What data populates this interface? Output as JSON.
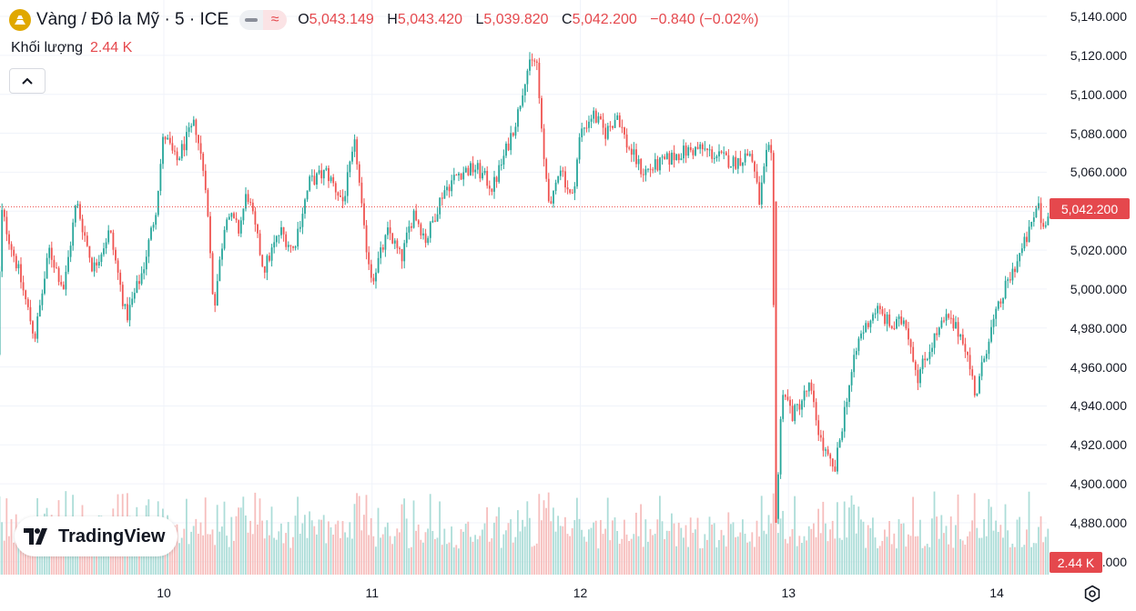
{
  "header": {
    "title": "Vàng / Đô la Mỹ · 5 · ICE",
    "ohlc": [
      {
        "label": "O",
        "value": "5,043.149"
      },
      {
        "label": "H",
        "value": "5,043.420"
      },
      {
        "label": "L",
        "value": "5,039.820"
      },
      {
        "label": "C",
        "value": "5,042.200"
      }
    ],
    "change": "−0.840 (−0.02%)",
    "volume_label": "Khối lượng",
    "volume_value": "2.44 K"
  },
  "logo_text": "TradingView",
  "last_price_label": "5,042.200",
  "last_volume_label": "2.44 K",
  "icons": [
    "gold-coin-icon",
    "minus-icon",
    "approx-icon",
    "chevron-up-icon",
    "tradingview-logo-icon",
    "settings-icon"
  ],
  "colors": {
    "up": "#26a69a",
    "down": "#ef5350",
    "accent": "#e5484d"
  },
  "chart_data": {
    "type": "candlestick",
    "title": "Vàng / Đô la Mỹ · 5 · ICE",
    "y_ticks": [
      "5,140.000",
      "5,120.000",
      "5,100.000",
      "5,080.000",
      "5,060.000",
      "5,040.000",
      "5,020.000",
      "5,000.000",
      "4,980.000",
      "4,960.000",
      "4,940.000",
      "4,920.000",
      "4,900.000",
      "4,880.000",
      "4,860.000"
    ],
    "y_tick_values": [
      5140,
      5120,
      5100,
      5080,
      5060,
      5040,
      5020,
      5000,
      4980,
      4960,
      4940,
      4920,
      4900,
      4880,
      4860
    ],
    "ylim": [
      4855,
      5145
    ],
    "x_ticks": [
      "10",
      "11",
      "12",
      "13",
      "14"
    ],
    "x_range_days": [
      9.2,
      14.25
    ],
    "last_price": 5042.2,
    "price_path": [
      [
        9.2,
        4965
      ],
      [
        9.22,
        5040
      ],
      [
        9.3,
        5010
      ],
      [
        9.38,
        4975
      ],
      [
        9.45,
        5020
      ],
      [
        9.52,
        5000
      ],
      [
        9.58,
        5045
      ],
      [
        9.66,
        5010
      ],
      [
        9.74,
        5030
      ],
      [
        9.82,
        4985
      ],
      [
        9.9,
        5010
      ],
      [
        9.96,
        5040
      ],
      [
        10.0,
        5080
      ],
      [
        10.06,
        5065
      ],
      [
        10.1,
        5075
      ],
      [
        10.15,
        5085
      ],
      [
        10.2,
        5055
      ],
      [
        10.24,
        4990
      ],
      [
        10.3,
        5040
      ],
      [
        10.36,
        5030
      ],
      [
        10.4,
        5050
      ],
      [
        10.48,
        5010
      ],
      [
        10.56,
        5030
      ],
      [
        10.62,
        5020
      ],
      [
        10.7,
        5055
      ],
      [
        10.78,
        5060
      ],
      [
        10.86,
        5045
      ],
      [
        10.92,
        5075
      ],
      [
        10.96,
        5030
      ],
      [
        11.0,
        5005
      ],
      [
        11.08,
        5030
      ],
      [
        11.14,
        5015
      ],
      [
        11.2,
        5040
      ],
      [
        11.26,
        5025
      ],
      [
        11.34,
        5050
      ],
      [
        11.42,
        5060
      ],
      [
        11.5,
        5062
      ],
      [
        11.58,
        5052
      ],
      [
        11.64,
        5070
      ],
      [
        11.7,
        5090
      ],
      [
        11.74,
        5112
      ],
      [
        11.79,
        5118
      ],
      [
        11.82,
        5070
      ],
      [
        11.86,
        5040
      ],
      [
        11.9,
        5065
      ],
      [
        11.96,
        5045
      ],
      [
        12.0,
        5080
      ],
      [
        12.06,
        5090
      ],
      [
        12.12,
        5080
      ],
      [
        12.18,
        5090
      ],
      [
        12.22,
        5075
      ],
      [
        12.3,
        5060
      ],
      [
        12.4,
        5065
      ],
      [
        12.48,
        5070
      ],
      [
        12.58,
        5072
      ],
      [
        12.66,
        5068
      ],
      [
        12.74,
        5065
      ],
      [
        12.82,
        5070
      ],
      [
        12.86,
        5045
      ],
      [
        12.9,
        5072
      ],
      [
        12.92,
        5065
      ],
      [
        12.94,
        4880
      ],
      [
        12.97,
        4950
      ],
      [
        13.02,
        4935
      ],
      [
        13.1,
        4950
      ],
      [
        13.16,
        4920
      ],
      [
        13.22,
        4905
      ],
      [
        13.28,
        4945
      ],
      [
        13.34,
        4975
      ],
      [
        13.42,
        4990
      ],
      [
        13.5,
        4980
      ],
      [
        13.56,
        4985
      ],
      [
        13.62,
        4955
      ],
      [
        13.7,
        4975
      ],
      [
        13.76,
        4985
      ],
      [
        13.84,
        4975
      ],
      [
        13.9,
        4945
      ],
      [
        13.96,
        4975
      ],
      [
        14.04,
        5000
      ],
      [
        14.1,
        5015
      ],
      [
        14.16,
        5030
      ],
      [
        14.2,
        5045
      ],
      [
        14.22,
        5030
      ],
      [
        14.25,
        5042
      ]
    ],
    "volume_note": "volume bars per candle, scale 0 to ~3.0 K",
    "volume_max": 3.0
  }
}
